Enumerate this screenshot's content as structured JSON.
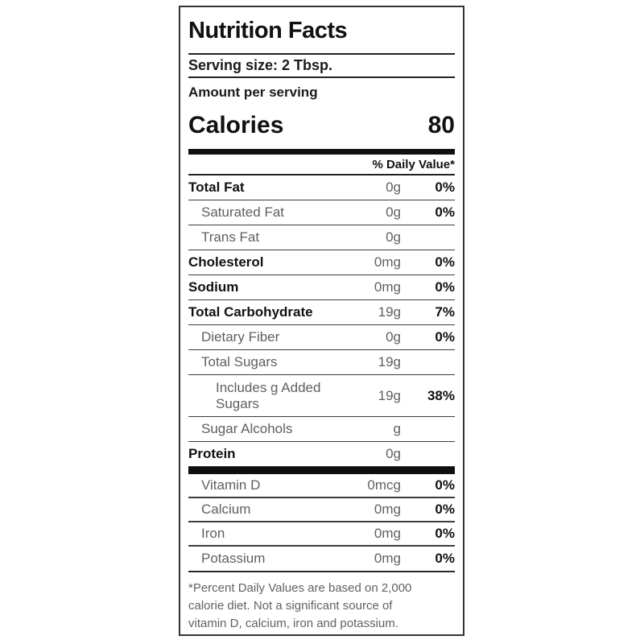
{
  "nutrition_label": {
    "title": "Nutrition Facts",
    "serving_size": "Serving size: 2 Tbsp.",
    "amount_per_serving": "Amount per serving",
    "calories": {
      "label": "Calories",
      "value": "80"
    },
    "daily_value_header": "% Daily Value*",
    "nutrients": [
      {
        "name": "Total Fat",
        "amount": "0g",
        "percent": "0%",
        "style": "bold",
        "tall": false
      },
      {
        "name": "Saturated Fat",
        "amount": "0g",
        "percent": "0%",
        "style": "indent1",
        "tall": false
      },
      {
        "name": "Trans Fat",
        "amount": "0g",
        "percent": "",
        "style": "indent1",
        "tall": false
      },
      {
        "name": "Cholesterol",
        "amount": "0mg",
        "percent": "0%",
        "style": "bold",
        "tall": false
      },
      {
        "name": "Sodium",
        "amount": "0mg",
        "percent": "0%",
        "style": "bold",
        "tall": false
      },
      {
        "name": "Total Carbohydrate",
        "amount": "19g",
        "percent": "7%",
        "style": "bold",
        "tall": false
      },
      {
        "name": "Dietary Fiber",
        "amount": "0g",
        "percent": "0%",
        "style": "indent1",
        "tall": false
      },
      {
        "name": "Total Sugars",
        "amount": "19g",
        "percent": "",
        "style": "indent1",
        "tall": false
      },
      {
        "name": "Includes g Added Sugars",
        "amount": "19g",
        "percent": "38%",
        "style": "indent2",
        "tall": true
      },
      {
        "name": "Sugar Alcohols",
        "amount": "g",
        "percent": "",
        "style": "indent1",
        "tall": false
      },
      {
        "name": "Protein",
        "amount": "0g",
        "percent": "",
        "style": "bold",
        "tall": false
      }
    ],
    "micronutrients": [
      {
        "name": "Vitamin D",
        "amount": "0mcg",
        "percent": "0%"
      },
      {
        "name": "Calcium",
        "amount": "0mg",
        "percent": "0%"
      },
      {
        "name": "Iron",
        "amount": "0mg",
        "percent": "0%"
      },
      {
        "name": "Potassium",
        "amount": "0mg",
        "percent": "0%"
      }
    ],
    "footnote_lines": [
      "*Percent Daily Values are based on 2,000",
      "calorie diet. Not a significant source of",
      "vitamin D, calcium, iron and potassium."
    ],
    "colors": {
      "text_black": "#111111",
      "text_gray": "#5f5f5f",
      "rule": "#3c3c3c",
      "thick_bar": "#0f0f0f",
      "border": "#333333"
    }
  }
}
